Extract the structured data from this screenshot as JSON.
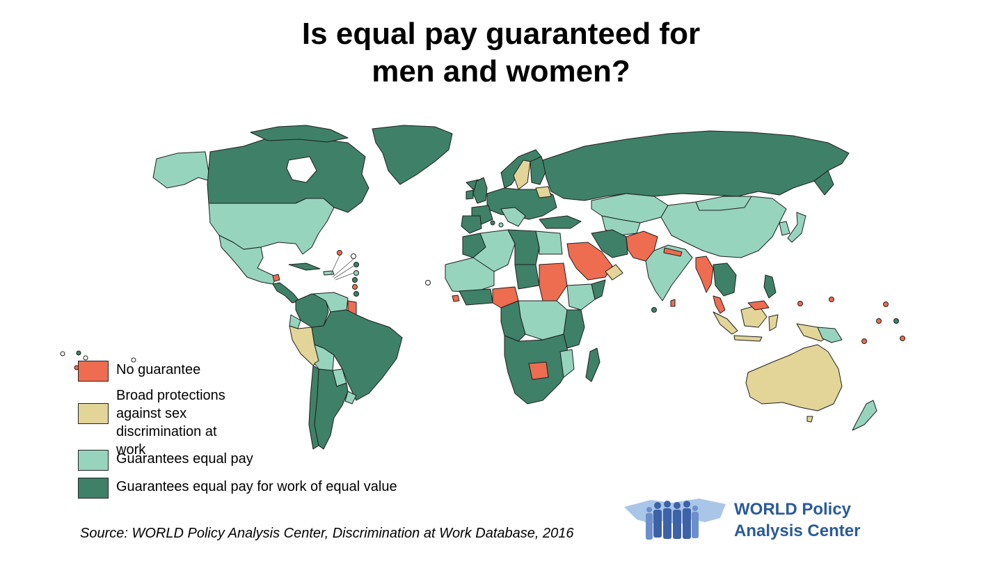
{
  "title_line1": "Is equal pay guaranteed for",
  "title_line2": "men and women?",
  "colors": {
    "no_guarantee": "#ee6c50",
    "broad_protections": "#e2d597",
    "equal_pay": "#96d4be",
    "equal_value": "#3f8068",
    "border": "#1e1e1e",
    "logo_blue": "#2a5a9a"
  },
  "legend": {
    "items": [
      {
        "label": "No guarantee",
        "color": "#ee6c50"
      },
      {
        "label": "Broad protections against sex discrimination at work",
        "color": "#e2d597"
      },
      {
        "label": "Guarantees equal pay",
        "color": "#96d4be"
      },
      {
        "label": "Guarantees equal pay for work of equal value",
        "color": "#3f8068"
      }
    ]
  },
  "source": "Source: WORLD Policy Analysis Center, Discrimination at Work Database, 2016",
  "logo": {
    "line1": "WORLD Policy",
    "line2": "Analysis Center",
    "icon": "people-over-world-map-logo"
  }
}
